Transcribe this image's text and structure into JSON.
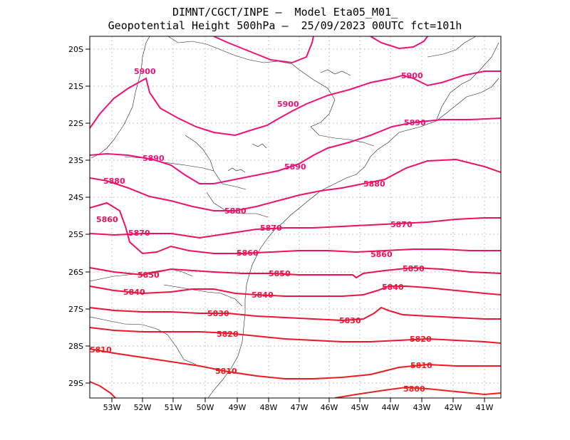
{
  "title": {
    "line1": "DIMNT/CGCT/INPE –  Model Eta05_M01_",
    "line2": "Geopotential Height 500hPa –  25/09/2023 00UTC fct=101h"
  },
  "axes": {
    "lon_labels": [
      "53W",
      "52W",
      "51W",
      "50W",
      "49W",
      "48W",
      "47W",
      "46W",
      "45W",
      "44W",
      "43W",
      "42W",
      "41W"
    ],
    "lat_labels": [
      "20S",
      "21S",
      "22S",
      "23S",
      "24S",
      "25S",
      "26S",
      "27S",
      "28S",
      "29S"
    ]
  },
  "contours": [
    {
      "label": "5900",
      "color": "#ee1177"
    },
    {
      "label": "5900",
      "color": "#ee1177"
    },
    {
      "label": "5900",
      "color": "#ee1177"
    },
    {
      "label": "5890",
      "color": "#ee1177"
    },
    {
      "label": "5890",
      "color": "#ee1177"
    },
    {
      "label": "5890",
      "color": "#ee1177"
    },
    {
      "label": "5880",
      "color": "#ee1166"
    },
    {
      "label": "5880",
      "color": "#ee1166"
    },
    {
      "label": "5880",
      "color": "#ee1166"
    },
    {
      "label": "5870",
      "color": "#ee1160"
    },
    {
      "label": "5870",
      "color": "#ee1160"
    },
    {
      "label": "5870",
      "color": "#ee1160"
    },
    {
      "label": "5860",
      "color": "#ee1155"
    },
    {
      "label": "5860",
      "color": "#ee1155"
    },
    {
      "label": "5860",
      "color": "#ee1155"
    },
    {
      "label": "5850",
      "color": "#ee1149"
    },
    {
      "label": "5850",
      "color": "#ee1149"
    },
    {
      "label": "5850",
      "color": "#ee1149"
    },
    {
      "label": "5840",
      "color": "#ee1440"
    },
    {
      "label": "5840",
      "color": "#ee1440"
    },
    {
      "label": "5840",
      "color": "#ee1440"
    },
    {
      "label": "5830",
      "color": "#ee1433"
    },
    {
      "label": "5830",
      "color": "#ee1433"
    },
    {
      "label": "5820",
      "color": "#ee1628"
    },
    {
      "label": "5820",
      "color": "#ee1628"
    },
    {
      "label": "5810",
      "color": "#ee1a22"
    },
    {
      "label": "5810",
      "color": "#ee1a22"
    },
    {
      "label": "5810",
      "color": "#ee1a22"
    },
    {
      "label": "5800",
      "color": "#ee2020"
    }
  ]
}
